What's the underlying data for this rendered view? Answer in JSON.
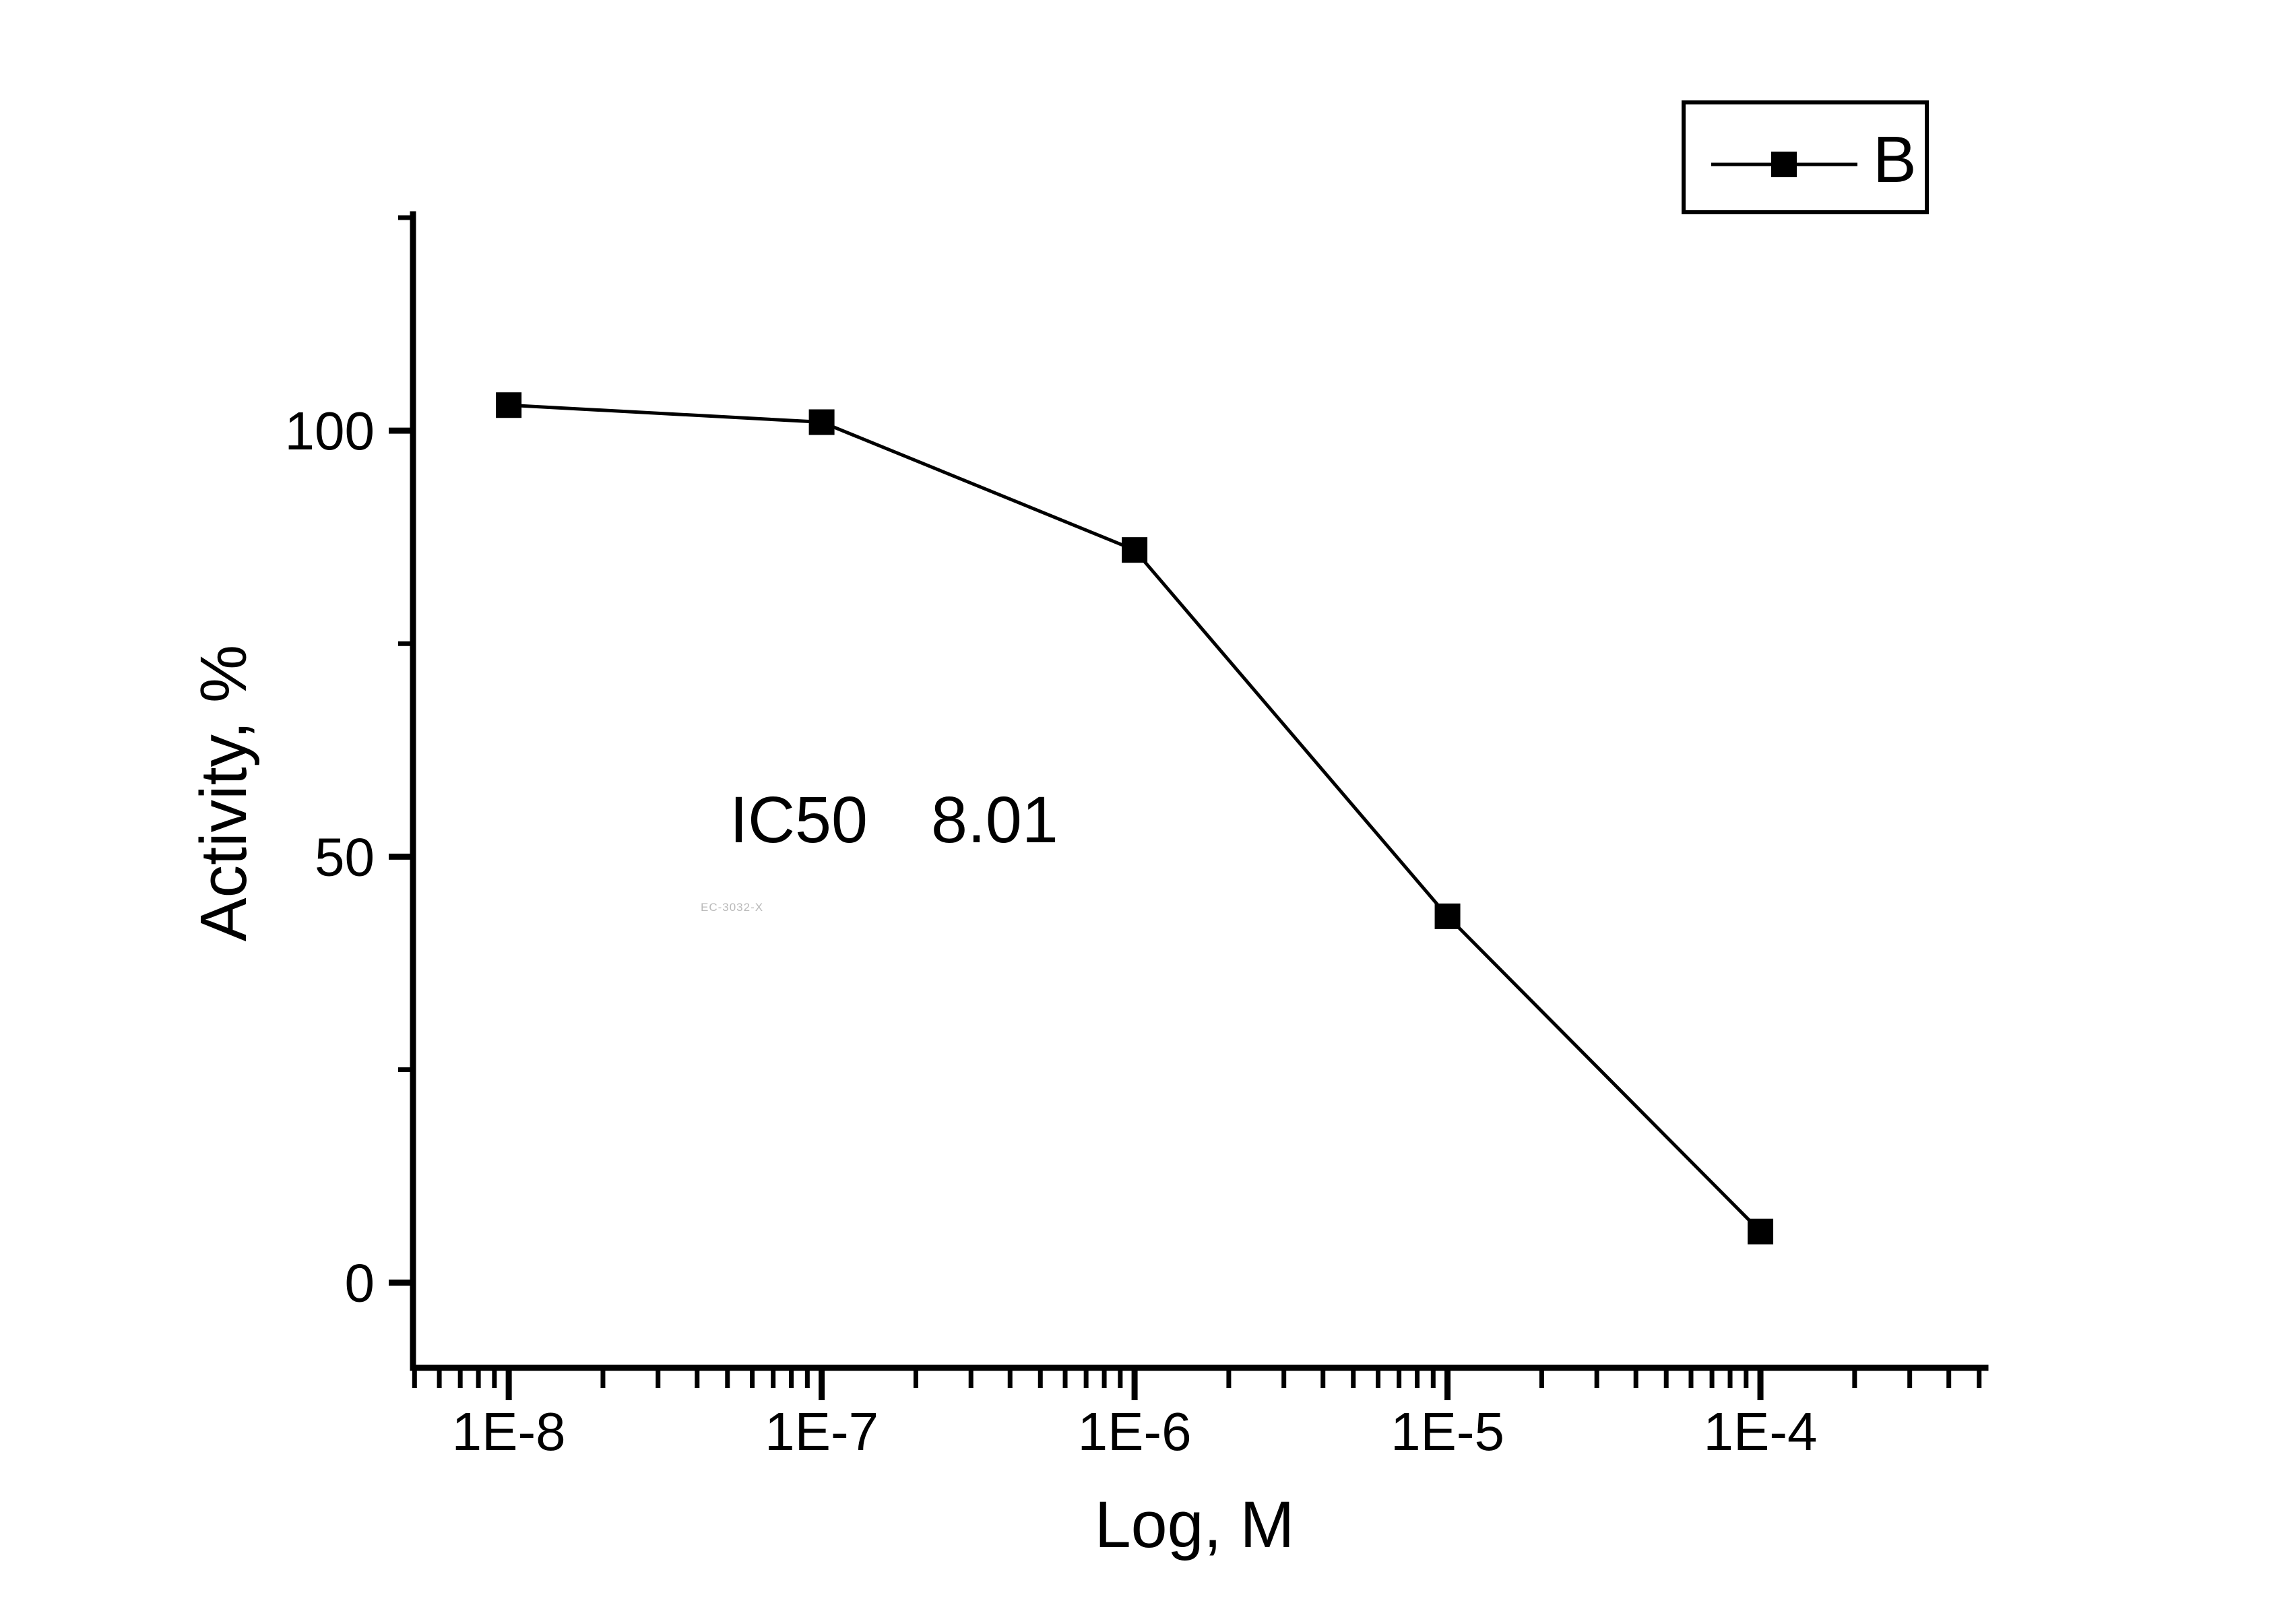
{
  "figure": {
    "background_color": "#ffffff",
    "watermark": "EC-3032-X",
    "annotation": {
      "label": "IC50",
      "value": "8.01"
    }
  },
  "legend": {
    "position": "top-right",
    "entries": [
      {
        "label": "B",
        "marker": "filled-square",
        "color": "#000000"
      }
    ]
  },
  "chart_data": {
    "type": "line",
    "title": "",
    "xlabel": "Log, M",
    "ylabel": "Activity, %",
    "x_scale": "log",
    "x": [
      1e-08,
      1e-07,
      1e-06,
      1e-05,
      0.0001
    ],
    "x_tick_labels": [
      "1E-8",
      "1E-7",
      "1E-6",
      "1E-5",
      "1E-4"
    ],
    "series": [
      {
        "name": "B",
        "values": [
          103,
          101,
          86,
          43,
          6
        ],
        "color": "#000000",
        "marker": "square",
        "line_style": "solid"
      }
    ],
    "y_ticks": [
      0,
      50,
      100
    ],
    "y_minor_ticks": [
      25,
      75,
      125
    ],
    "ylim": [
      -10,
      125.4
    ],
    "xlim_log10": [
      -8.306,
      -3.281
    ],
    "grid": false,
    "legend_position": "top-right"
  }
}
